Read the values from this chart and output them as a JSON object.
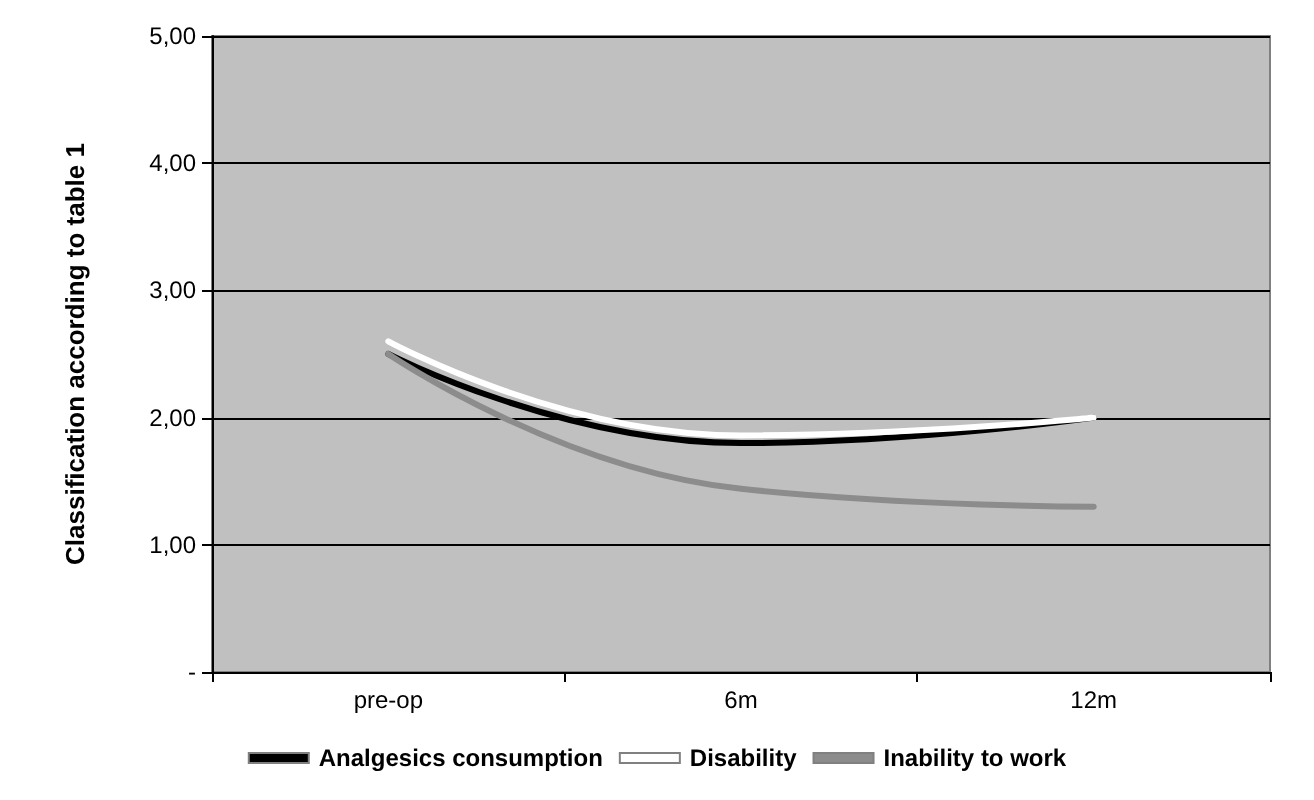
{
  "chart_data": {
    "type": "line",
    "ylabel": "Classification according to table 1",
    "categories": [
      "pre-op",
      "6m",
      "12m"
    ],
    "series": [
      {
        "name": "Analgesics consumption",
        "color": "#000000",
        "values": [
          2.5,
          1.8,
          2.0
        ]
      },
      {
        "name": "Disability",
        "color": "#ffffff",
        "values": [
          2.6,
          1.86,
          2.0
        ]
      },
      {
        "name": "Inability to work",
        "color": "#8c8c8c",
        "values": [
          2.5,
          1.44,
          1.3
        ]
      }
    ],
    "ylim": [
      0,
      5
    ],
    "yticks": [
      {
        "value": 0,
        "label": "-"
      },
      {
        "value": 1,
        "label": "1,00"
      },
      {
        "value": 2,
        "label": "2,00"
      },
      {
        "value": 3,
        "label": "3,00"
      },
      {
        "value": 4,
        "label": "4,00"
      },
      {
        "value": 5,
        "label": "5,00"
      }
    ],
    "grid": "y",
    "legend": "bottom",
    "marker": "none",
    "line_style": "solid"
  }
}
